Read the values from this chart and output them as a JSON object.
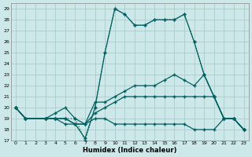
{
  "xlabel": "Humidex (Indice chaleur)",
  "xlim": [
    -0.5,
    23.5
  ],
  "ylim": [
    17,
    29.5
  ],
  "yticks": [
    17,
    18,
    19,
    20,
    21,
    22,
    23,
    24,
    25,
    26,
    27,
    28,
    29
  ],
  "xticks": [
    0,
    1,
    2,
    3,
    4,
    5,
    6,
    7,
    8,
    9,
    10,
    11,
    12,
    13,
    14,
    15,
    16,
    17,
    18,
    19,
    20,
    21,
    22,
    23
  ],
  "background_color": "#cde8e8",
  "grid_color": "#a8cccc",
  "line_color": "#006060",
  "lines": [
    {
      "x": [
        0,
        1,
        3,
        4,
        5,
        6,
        7,
        8,
        9,
        10,
        11,
        12,
        13,
        14,
        15,
        16,
        17,
        18,
        19,
        20,
        21,
        22,
        23
      ],
      "y": [
        20,
        19,
        19,
        19,
        19,
        19,
        17,
        20,
        25,
        29,
        28.5,
        27.5,
        27.5,
        28,
        28,
        28,
        28.5,
        26,
        23,
        21,
        19,
        19,
        18
      ],
      "style": ":"
    },
    {
      "x": [
        0,
        1,
        3,
        4,
        5,
        6,
        7,
        8,
        9,
        10,
        11,
        12,
        13,
        14,
        15,
        16,
        17,
        18,
        19,
        20,
        21,
        22,
        23
      ],
      "y": [
        20,
        19,
        19,
        19,
        19,
        18.5,
        17.2,
        20,
        25,
        29,
        28.5,
        27.5,
        27.5,
        28,
        28,
        28,
        28.5,
        26,
        23,
        21,
        19,
        19,
        18
      ],
      "style": "-"
    },
    {
      "x": [
        0,
        1,
        3,
        4,
        5,
        6,
        7,
        8,
        9,
        10,
        11,
        12,
        13,
        14,
        15,
        16,
        17,
        18,
        19,
        20,
        21,
        22,
        23
      ],
      "y": [
        20,
        19,
        19,
        19.5,
        20,
        19,
        18.5,
        20.5,
        20.5,
        21,
        21.5,
        22,
        22,
        22,
        22.5,
        23,
        22.5,
        22,
        23,
        21,
        19,
        19,
        18
      ],
      "style": "-"
    },
    {
      "x": [
        0,
        1,
        3,
        4,
        5,
        6,
        7,
        8,
        9,
        10,
        11,
        12,
        13,
        14,
        15,
        16,
        17,
        18,
        19,
        20,
        21,
        22,
        23
      ],
      "y": [
        20,
        19,
        19,
        19,
        19,
        18.5,
        18.5,
        19.5,
        20,
        20.5,
        21,
        21,
        21,
        21,
        21,
        21,
        21,
        21,
        21,
        21,
        19,
        19,
        18
      ],
      "style": "-"
    },
    {
      "x": [
        0,
        1,
        3,
        4,
        5,
        6,
        7,
        8,
        9,
        10,
        11,
        12,
        13,
        14,
        15,
        16,
        17,
        18,
        19,
        20,
        21,
        22,
        23
      ],
      "y": [
        20,
        19,
        19,
        19,
        18.5,
        18.5,
        18.5,
        19,
        19,
        18.5,
        18.5,
        18.5,
        18.5,
        18.5,
        18.5,
        18.5,
        18.5,
        18,
        18,
        18,
        19,
        19,
        18
      ],
      "style": "-"
    }
  ]
}
